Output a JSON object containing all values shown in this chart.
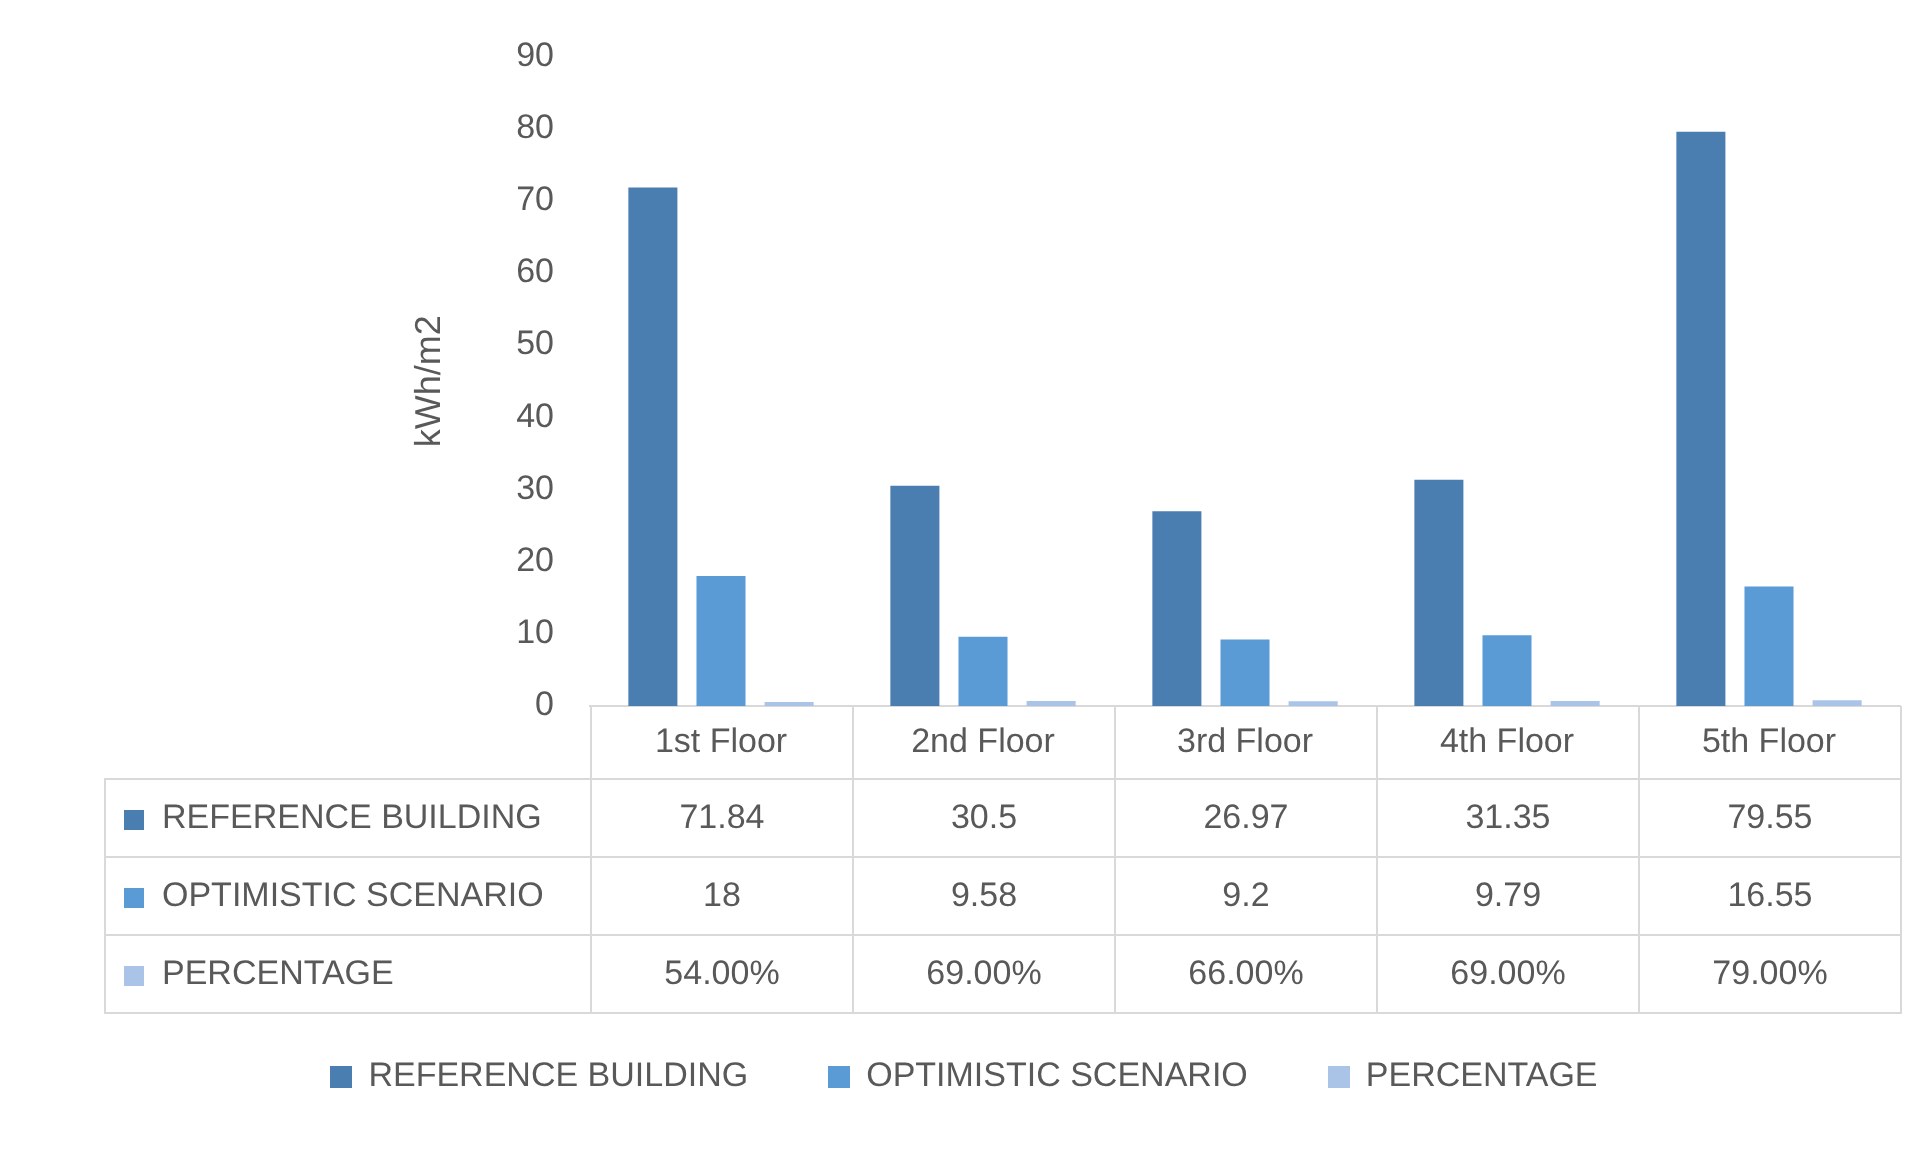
{
  "chart_data": {
    "type": "bar",
    "ylabel": "kWh/m2",
    "categories": [
      "1st Floor",
      "2nd Floor",
      "3rd Floor",
      "4th Floor",
      "5th Floor"
    ],
    "series": [
      {
        "name": "REFERENCE BUILDING",
        "color": "#4a7eb1",
        "values": [
          71.84,
          30.5,
          26.97,
          31.35,
          79.55
        ],
        "value_labels": [
          "71.84",
          "30.5",
          "26.97",
          "31.35",
          "79.55"
        ]
      },
      {
        "name": "OPTIMISTIC SCENARIO",
        "color": "#5b9bd5",
        "values": [
          18,
          9.58,
          9.2,
          9.79,
          16.55
        ],
        "value_labels": [
          "18",
          "9.58",
          "9.2",
          "9.79",
          "16.55"
        ]
      },
      {
        "name": "PERCENTAGE",
        "color": "#a9c4e7",
        "values": [
          0.54,
          0.69,
          0.66,
          0.69,
          0.79
        ],
        "value_labels": [
          "54.00%",
          "69.00%",
          "66.00%",
          "69.00%",
          "79.00%"
        ]
      }
    ],
    "ylim": [
      0,
      90
    ],
    "yticks": [
      0,
      10,
      20,
      30,
      40,
      50,
      60,
      70,
      80,
      90
    ],
    "grid": false,
    "legend": "bottom"
  }
}
